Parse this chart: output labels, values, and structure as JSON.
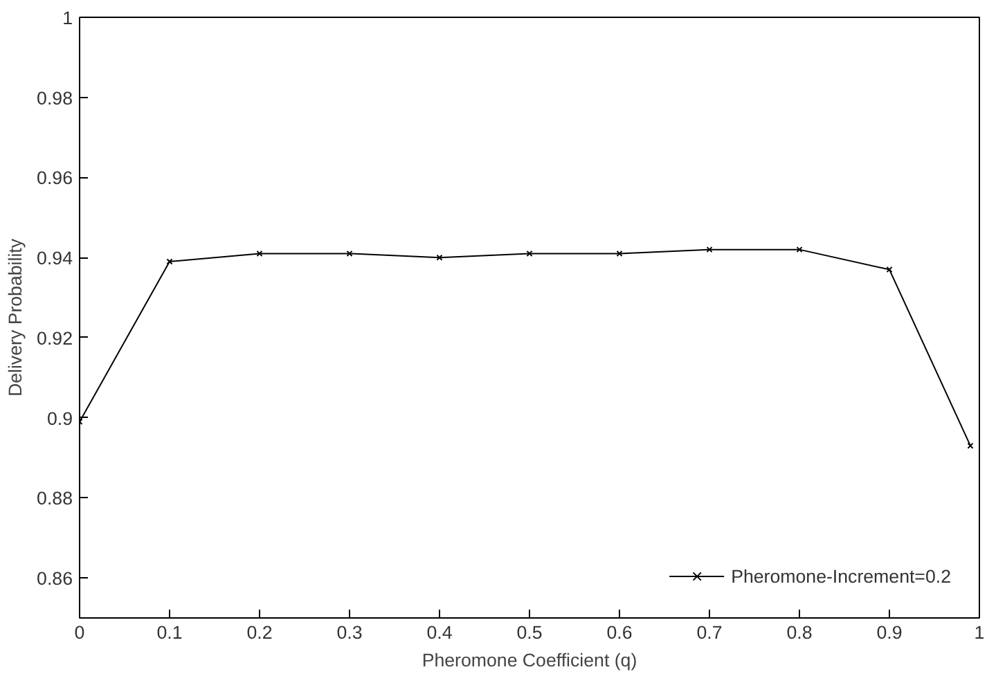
{
  "chart_data": {
    "type": "line",
    "xlabel": "Pheromone Coefficient (q)",
    "ylabel": "Delivery Probability",
    "x": [
      0,
      0.1,
      0.2,
      0.3,
      0.4,
      0.5,
      0.6,
      0.7,
      0.8,
      0.9,
      0.99
    ],
    "series": [
      {
        "name": "Pheromone-Increment=0.2",
        "color": "#000000",
        "values": [
          0.899,
          0.939,
          0.941,
          0.941,
          0.94,
          0.941,
          0.941,
          0.942,
          0.942,
          0.937,
          0.893
        ]
      }
    ],
    "xlim": [
      0,
      1
    ],
    "ylim": [
      0.85,
      1
    ],
    "xticks": [
      0,
      0.1,
      0.2,
      0.3,
      0.4,
      0.5,
      0.6,
      0.7,
      0.8,
      0.9,
      1
    ],
    "yticks": [
      0.86,
      0.88,
      0.9,
      0.92,
      0.94,
      0.96,
      0.98,
      1
    ],
    "marker": "cross",
    "line_style": "solid",
    "legend": "bottom right",
    "grid": false
  }
}
